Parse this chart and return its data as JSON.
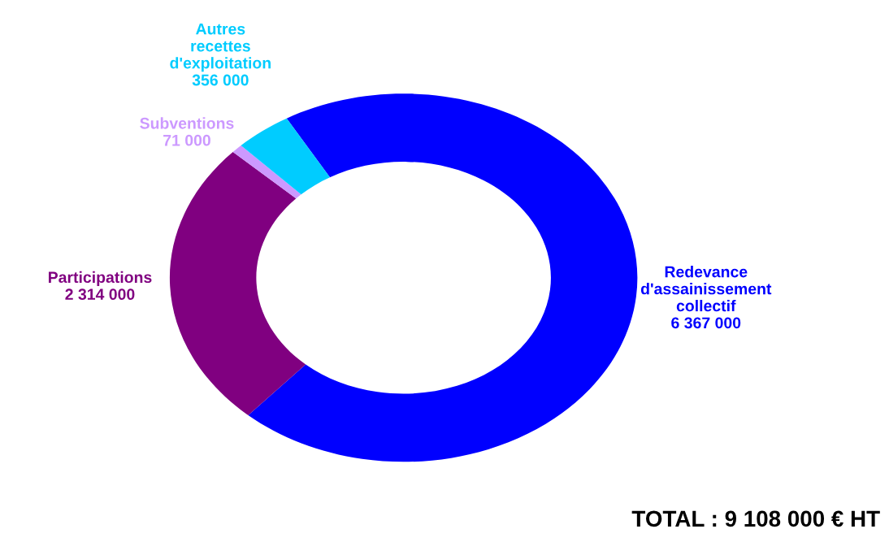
{
  "chart_data": {
    "type": "donut",
    "categories": [
      "Redevance d'assainissement collectif",
      "Participations",
      "Subventions",
      "Autres recettes d'exploitation"
    ],
    "values": [
      6367000,
      2314000,
      71000,
      356000
    ],
    "colors": [
      "#0000ff",
      "#800080",
      "#cc99ff",
      "#00ccff"
    ],
    "data_labels": true,
    "annotations": [
      "TOTAL : 9 108 000 € HT"
    ],
    "legend": false
  }
}
